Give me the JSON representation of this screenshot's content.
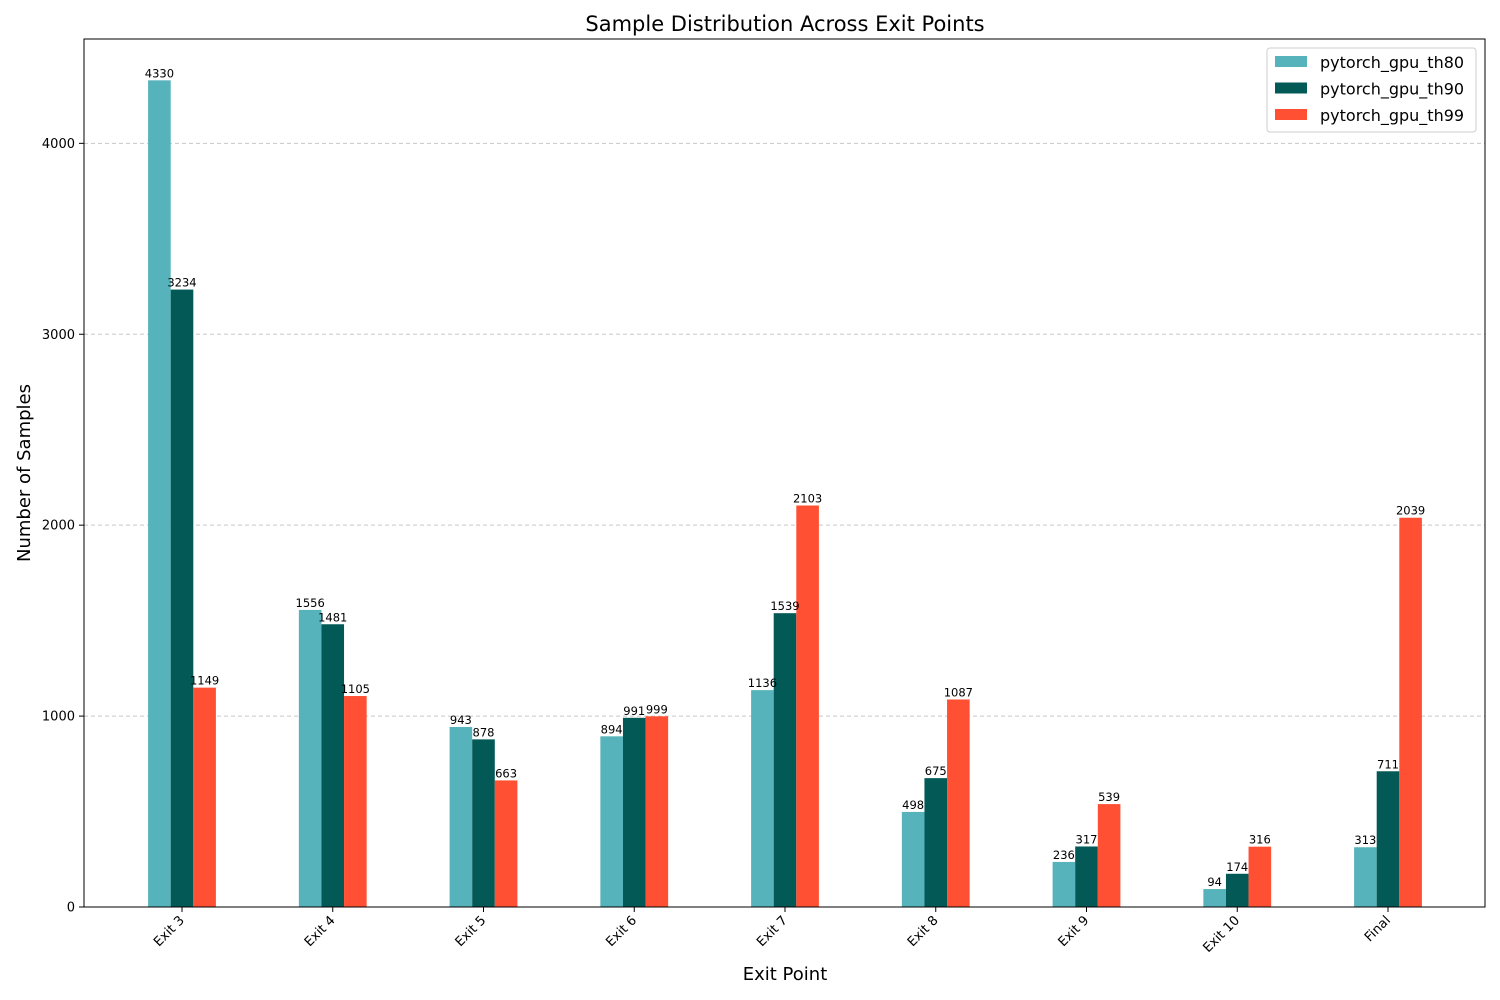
{
  "chart_data": {
    "type": "bar",
    "title": "Sample Distribution Across Exit Points",
    "xlabel": "Exit Point",
    "ylabel": "Number of Samples",
    "categories": [
      "Exit 3",
      "Exit 4",
      "Exit 5",
      "Exit 6",
      "Exit 7",
      "Exit 8",
      "Exit 9",
      "Exit 10",
      "Final"
    ],
    "series": [
      {
        "name": "pytorch_gpu_th80",
        "color": "#56b3bb",
        "values": [
          4330,
          1556,
          943,
          894,
          1136,
          498,
          236,
          94,
          313
        ]
      },
      {
        "name": "pytorch_gpu_th90",
        "color": "#025956",
        "values": [
          3234,
          1481,
          878,
          991,
          1539,
          675,
          317,
          174,
          711
        ]
      },
      {
        "name": "pytorch_gpu_th99",
        "color": "#ff5033",
        "values": [
          1149,
          1105,
          663,
          999,
          2103,
          1087,
          539,
          316,
          2039
        ]
      }
    ],
    "yticks": [
      0,
      1000,
      2000,
      3000,
      4000
    ],
    "ylim": [
      0,
      4546.5
    ],
    "grid": "y-dashed",
    "legend_position": "top-right"
  }
}
